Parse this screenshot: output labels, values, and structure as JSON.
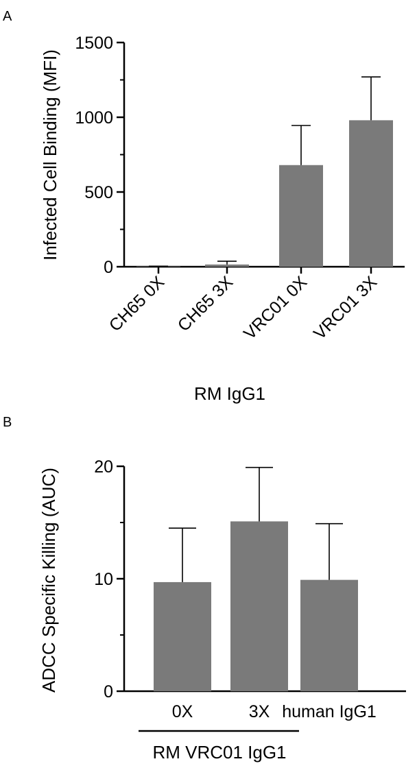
{
  "chart_data": [
    {
      "panel": "A",
      "type": "bar",
      "categories": [
        "CH65 0X",
        "CH65 3X",
        "VRC01 0X",
        "VRC01 3X"
      ],
      "values": [
        2,
        15,
        680,
        980
      ],
      "errors": [
        2,
        22,
        265,
        290
      ],
      "ylabel": "Infected Cell Binding (MFI)",
      "xlabel": "RM IgG1",
      "ylim": [
        0,
        1500
      ],
      "yticks": [
        0,
        500,
        1000,
        1500
      ],
      "bar_color": "#7a7a7a"
    },
    {
      "panel": "B",
      "type": "bar",
      "categories": [
        "0X",
        "3X",
        "human IgG1"
      ],
      "values": [
        9.7,
        15.1,
        9.9
      ],
      "errors": [
        4.8,
        4.8,
        5.0
      ],
      "ylabel": "ADCC Specific Killing (AUC)",
      "group_label": "RM VRC01 IgG1",
      "ylim": [
        0,
        20
      ],
      "yticks": [
        0,
        10,
        20
      ],
      "bar_color": "#7a7a7a"
    }
  ]
}
